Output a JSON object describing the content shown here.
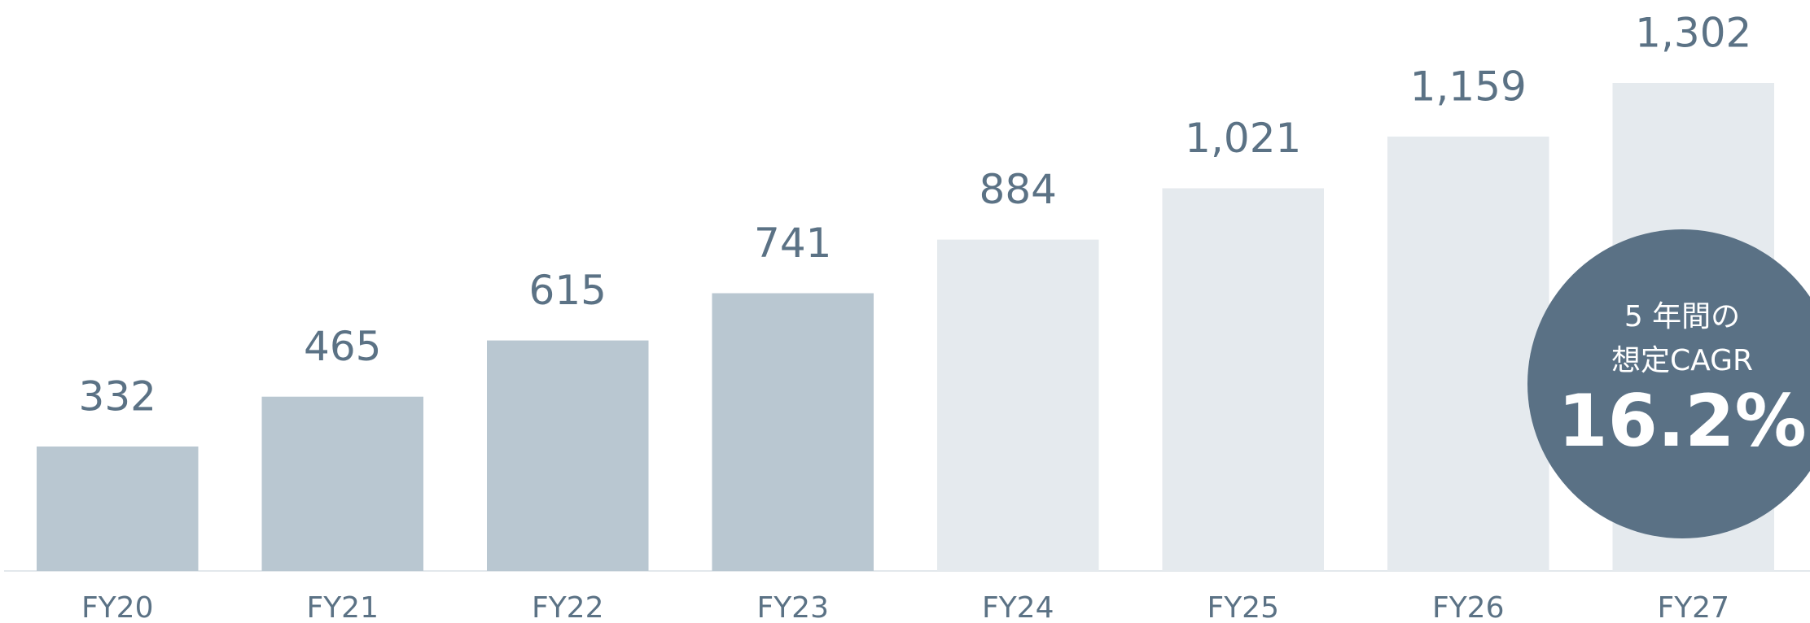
{
  "chart_data": {
    "type": "bar",
    "categories": [
      "FY20",
      "FY21",
      "FY22",
      "FY23",
      "FY24",
      "FY25",
      "FY26",
      "FY27"
    ],
    "values": [
      332,
      465,
      615,
      741,
      884,
      1021,
      1159,
      1302
    ],
    "value_labels": [
      "332",
      "465",
      "615",
      "741",
      "884",
      "1,021",
      "1,159",
      "1,302"
    ],
    "colors": [
      "#b9c7d1",
      "#b9c7d1",
      "#b9c7d1",
      "#b9c7d1",
      "#e5eaee",
      "#e5eaee",
      "#e5eaee",
      "#e5eaee"
    ],
    "ylim": [
      0,
      1302
    ],
    "annotation": {
      "lines": [
        "5 年間の",
        "想定CAGR"
      ],
      "highlight": "16.2%",
      "color": "#5a7185"
    }
  }
}
